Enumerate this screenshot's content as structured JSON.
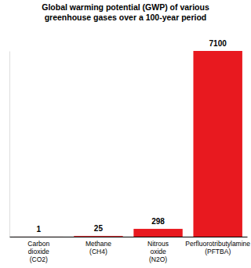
{
  "chart_data": {
    "type": "bar",
    "title": "Global warming potential (GWP) of various greenhouse gases over a 100-year period",
    "categories": [
      "Carbon dioxide (CO2)",
      "Methane (CH4)",
      "Nitrous oxide (N2O)",
      "Perfluorotributylamine (PFTBA)"
    ],
    "values": [
      1,
      25,
      298,
      7100
    ],
    "color": "#e8191f",
    "ylim": [
      0,
      7100
    ],
    "yticks": [],
    "grid": false,
    "data_labels": true,
    "tick_labels": "x"
  }
}
